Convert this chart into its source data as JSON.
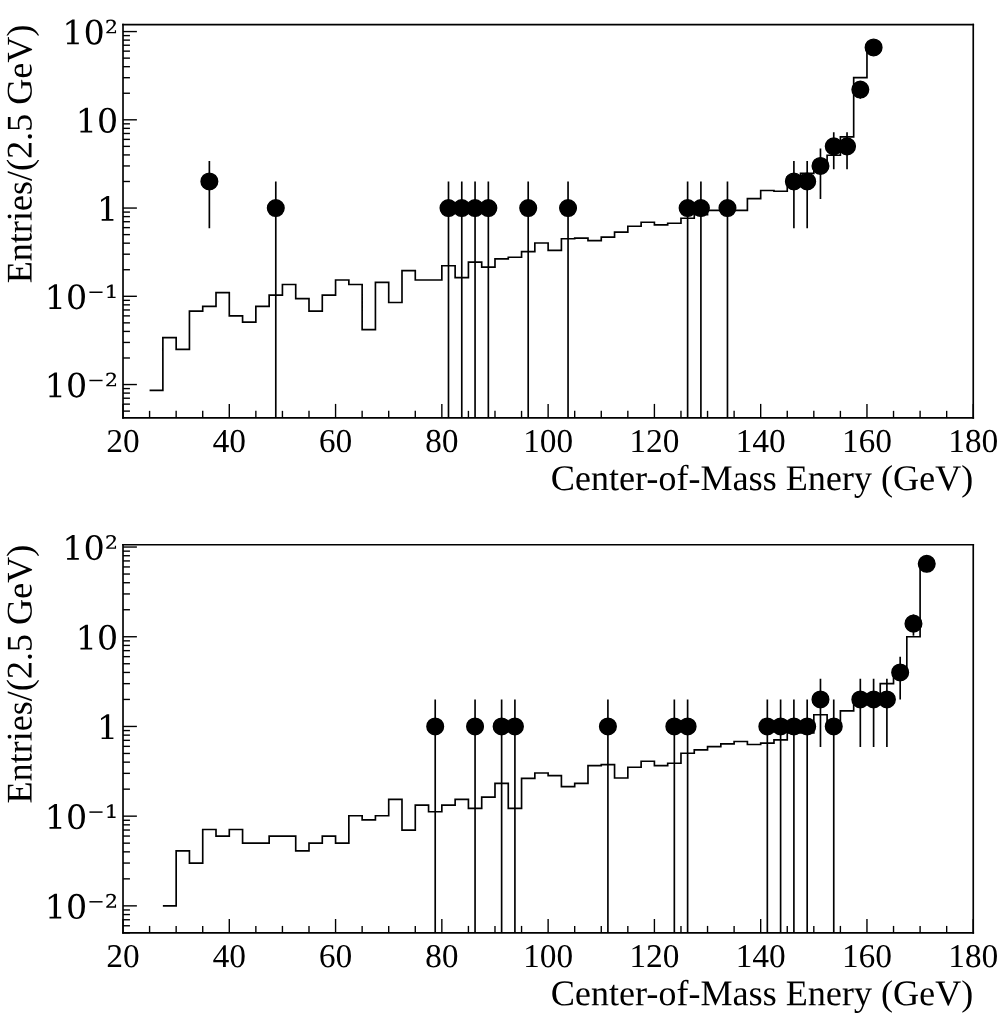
{
  "chart_data": [
    {
      "type": "histogram",
      "xlabel": "Center-of-Mass Enery (GeV)",
      "ylabel": "Entries/(2.5 GeV)",
      "log": "y",
      "marker": "circle",
      "color": "#000000",
      "xlim": [
        20,
        180
      ],
      "xticks": [
        20,
        40,
        60,
        80,
        100,
        120,
        140,
        160,
        180
      ],
      "ylim": [
        0.0042,
        120
      ],
      "yticks": [
        {
          "value": 0.01,
          "label": "10⁻²"
        },
        {
          "value": 0.1,
          "label": "10⁻¹"
        },
        1,
        10,
        {
          "value": 100,
          "label": "10²"
        }
      ],
      "bins": [
        25,
        27.5,
        30,
        32.5,
        35,
        37.5,
        40,
        42.5,
        45,
        47.5,
        50,
        52.5,
        55,
        57.5,
        60,
        62.5,
        65,
        67.5,
        70,
        72.5,
        75,
        77.5,
        80,
        82.5,
        85,
        87.5,
        90,
        92.5,
        95,
        97.5,
        100,
        102.5,
        105,
        107.5,
        110,
        112.5,
        115,
        117.5,
        120,
        122.5,
        125,
        127.5,
        130,
        132.5,
        135,
        137.5,
        140,
        142.5,
        145,
        147.5,
        150,
        152.5,
        155,
        157.5,
        160,
        162.5
      ],
      "values": [
        0.0086,
        0.034,
        0.025,
        0.068,
        0.077,
        0.11,
        0.06,
        0.051,
        0.077,
        0.103,
        0.136,
        0.094,
        0.068,
        0.103,
        0.153,
        0.136,
        0.042,
        0.144,
        0.085,
        0.195,
        0.153,
        0.153,
        0.222,
        0.163,
        0.244,
        0.214,
        0.266,
        0.277,
        0.321,
        0.402,
        0.332,
        0.449,
        0.457,
        0.427,
        0.469,
        0.533,
        0.622,
        0.69,
        0.644,
        0.672,
        0.766,
        0.841,
        0.94,
        0.94,
        0.94,
        1.28,
        1.58,
        1.55,
        2.26,
        2.47,
        3.2,
        3.97,
        6.4,
        30,
        66.7
      ],
      "series": [
        {
          "type": "scatter",
          "color": "#000000",
          "x": [
            36.25,
            48.75,
            81.25,
            83.75,
            86.25,
            88.75,
            96.25,
            103.75,
            126.25,
            128.75,
            133.75,
            146.25,
            148.75,
            151.25,
            153.75,
            156.25,
            158.75,
            161.25
          ],
          "values": [
            2,
            1,
            1,
            1,
            1,
            1,
            1,
            1,
            1,
            1,
            1,
            2,
            2,
            3,
            5,
            5,
            22,
            66
          ],
          "errors": [
            1.41,
            [
              0.0042,
              2
            ],
            [
              0.0042,
              2
            ],
            [
              0.0042,
              2
            ],
            [
              0.0042,
              2
            ],
            [
              0.0042,
              2
            ],
            [
              0.0042,
              2
            ],
            [
              0.0042,
              2
            ],
            [
              0.0042,
              2
            ],
            [
              0.0042,
              2
            ],
            [
              0.0042,
              2
            ],
            1.41,
            1.41,
            1.73,
            2.24,
            2.24,
            4.69,
            8.12
          ]
        }
      ]
    },
    {
      "type": "histogram",
      "xlabel": "Center-of-Mass Enery (GeV)",
      "ylabel": "Entries/(2.5 GeV)",
      "log": "y",
      "marker": "circle",
      "color": "#000000",
      "xlim": [
        20,
        180
      ],
      "xticks": [
        20,
        40,
        60,
        80,
        100,
        120,
        140,
        160,
        180
      ],
      "ylim": [
        0.005,
        106
      ],
      "yticks": [
        {
          "value": 0.01,
          "label": "10⁻²"
        },
        {
          "value": 0.1,
          "label": "10⁻¹"
        },
        1,
        10,
        {
          "value": 100,
          "label": "10²"
        }
      ],
      "bins": [
        27.5,
        30,
        32.5,
        35,
        37.5,
        40,
        42.5,
        45,
        47.5,
        50,
        52.5,
        55,
        57.5,
        60,
        62.5,
        65,
        67.5,
        70,
        72.5,
        75,
        77.5,
        80,
        82.5,
        85,
        87.5,
        90,
        92.5,
        95,
        97.5,
        100,
        102.5,
        105,
        107.5,
        110,
        112.5,
        115,
        117.5,
        120,
        122.5,
        125,
        127.5,
        130,
        132.5,
        135,
        137.5,
        140,
        142.5,
        145,
        147.5,
        150,
        152.5,
        155,
        157.5,
        160,
        162.5,
        165,
        167.5,
        170,
        172.5
      ],
      "values": [
        0.01,
        0.041,
        0.03,
        0.071,
        0.06,
        0.071,
        0.05,
        0.05,
        0.06,
        0.06,
        0.041,
        0.05,
        0.06,
        0.05,
        0.101,
        0.091,
        0.101,
        0.154,
        0.07,
        0.133,
        0.112,
        0.133,
        0.154,
        0.122,
        0.163,
        0.232,
        0.122,
        0.264,
        0.303,
        0.283,
        0.213,
        0.232,
        0.366,
        0.375,
        0.266,
        0.351,
        0.409,
        0.366,
        0.389,
        0.503,
        0.548,
        0.597,
        0.639,
        0.68,
        0.629,
        0.652,
        0.71,
        0.849,
        0.849,
        1.35,
        0.98,
        1.49,
        1.99,
        2.1,
        3.0,
        4.2,
        10.0,
        58
      ],
      "series": [
        {
          "type": "scatter",
          "color": "#000000",
          "x": [
            78.75,
            86.25,
            91.25,
            93.75,
            111.25,
            123.75,
            126.25,
            141.25,
            143.75,
            146.25,
            148.75,
            151.25,
            153.75,
            158.75,
            161.25,
            163.75,
            166.25,
            168.75,
            171.25
          ],
          "values": [
            1,
            1,
            1,
            1,
            1,
            1,
            1,
            1,
            1,
            1,
            1,
            2,
            1,
            2,
            2,
            2,
            4,
            14,
            65
          ],
          "errors": [
            [
              0.005,
              2
            ],
            [
              0.005,
              2
            ],
            [
              0.005,
              2
            ],
            [
              0.005,
              2
            ],
            [
              0.005,
              2
            ],
            [
              0.005,
              2
            ],
            [
              0.005,
              2
            ],
            [
              0.005,
              2
            ],
            [
              0.005,
              2
            ],
            [
              0.005,
              2
            ],
            [
              0.005,
              2
            ],
            1.41,
            [
              0.005,
              2
            ],
            1.41,
            1.41,
            1.41,
            2,
            3.74,
            8.06
          ]
        }
      ]
    }
  ]
}
